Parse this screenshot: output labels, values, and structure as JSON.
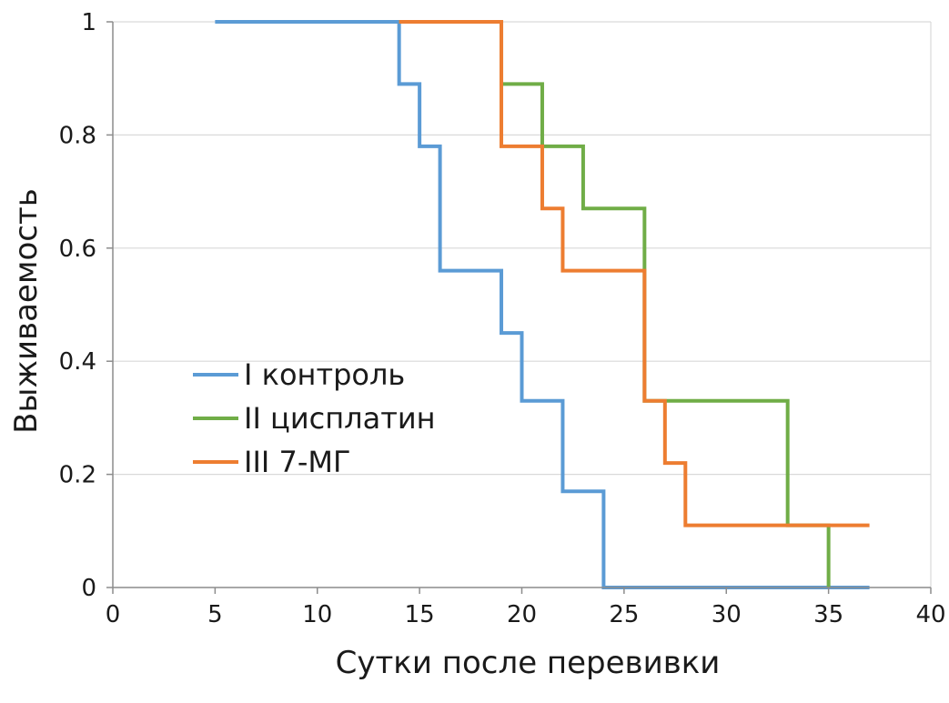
{
  "chart_data": {
    "type": "line",
    "subtype": "step (Kaplan-Meier survival)",
    "title": "",
    "xlabel": "Сутки после перевивки",
    "ylabel": "Выживаемость",
    "xlim": [
      0,
      40
    ],
    "ylim": [
      0,
      1
    ],
    "x_ticks": [
      0,
      5,
      10,
      15,
      20,
      25,
      30,
      35,
      40
    ],
    "y_ticks": [
      0,
      0.2,
      0.4,
      0.6,
      0.8,
      1
    ],
    "x_tick_labels": [
      "0",
      "5",
      "10",
      "15",
      "20",
      "25",
      "30",
      "35",
      "40"
    ],
    "y_tick_labels": [
      "0",
      "0.2",
      "0.4",
      "0.6",
      "0.8",
      "1"
    ],
    "grid": "horizontal",
    "legend_position": "center-left",
    "series": [
      {
        "name": "I контроль",
        "color": "#5B9BD5",
        "x": [
          5,
          14,
          15,
          16,
          19,
          20,
          22,
          24,
          37
        ],
        "y": [
          1,
          0.89,
          0.78,
          0.56,
          0.45,
          0.33,
          0.17,
          0,
          0
        ]
      },
      {
        "name": "II цисплатин",
        "color": "#70AD47",
        "x": [
          14,
          19,
          21,
          23,
          26,
          33,
          35
        ],
        "y": [
          1,
          0.89,
          0.78,
          0.67,
          0.33,
          0.11,
          0
        ]
      },
      {
        "name": "III 7-МГ",
        "color": "#ED7D31",
        "x": [
          14,
          19,
          21,
          22,
          26,
          27,
          28,
          37
        ],
        "y": [
          1,
          0.78,
          0.67,
          0.56,
          0.33,
          0.22,
          0.11,
          0.11
        ]
      }
    ]
  }
}
